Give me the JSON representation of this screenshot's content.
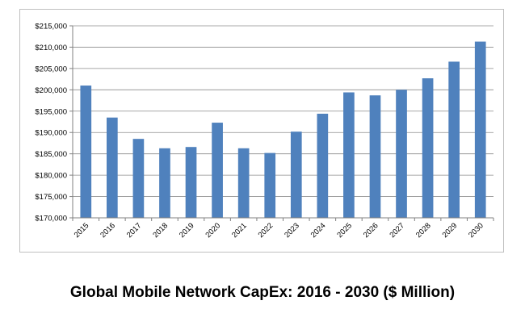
{
  "chart_data": {
    "type": "bar",
    "title": "Global Mobile Network CapEx: 2016 - 2030 ($ Million)",
    "xlabel": "",
    "ylabel": "",
    "categories": [
      "2015",
      "2016",
      "2017",
      "2018",
      "2019",
      "2020",
      "2021",
      "2022",
      "2023",
      "2024",
      "2025",
      "2026",
      "2027",
      "2028",
      "2029",
      "2030"
    ],
    "values": [
      201000,
      193500,
      188500,
      186300,
      186600,
      192300,
      186300,
      185200,
      190200,
      194400,
      199400,
      198700,
      200000,
      202700,
      206600,
      211300
    ],
    "ylim": [
      170000,
      215000
    ],
    "yticks": [
      170000,
      175000,
      180000,
      185000,
      190000,
      195000,
      200000,
      205000,
      210000,
      215000
    ],
    "ytick_labels": [
      "$170,000",
      "$175,000",
      "$180,000",
      "$185,000",
      "$190,000",
      "$195,000",
      "$200,000",
      "$205,000",
      "$210,000",
      "$215,000"
    ],
    "grid": true,
    "legend": "none",
    "bar_color": "#4f81bd"
  }
}
